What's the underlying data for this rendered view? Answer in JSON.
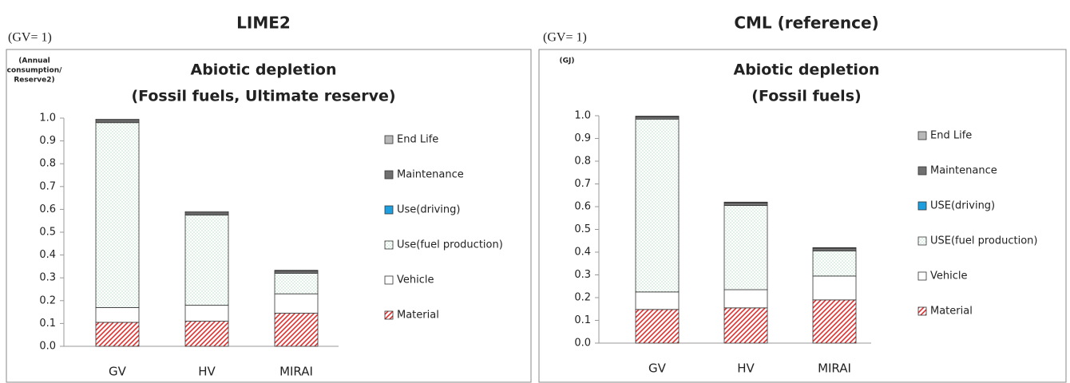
{
  "chart_data": [
    {
      "type": "bar",
      "stacked": true,
      "heading": "LIME2",
      "scale_note": "(GV= 1)",
      "title": [
        "Abiotic depletion",
        "(Fossil fuels, Ultimate reserve)"
      ],
      "y_label": [
        "(Annual",
        "consumption/",
        "Reserve2)"
      ],
      "categories": [
        "GV",
        "HV",
        "MIRAI"
      ],
      "ylim": [
        0,
        1
      ],
      "yticks": [
        {
          "value": 0,
          "label": "0.0"
        },
        0.1,
        0.2,
        0.3,
        0.4,
        0.5,
        0.6,
        0.7,
        0.8,
        0.9,
        {
          "value": 1,
          "label": "1.0"
        }
      ],
      "legend": "right",
      "series": [
        {
          "name": "Material",
          "color": "#e03030",
          "pattern": "hatch",
          "values": [
            0.105,
            0.11,
            0.145
          ]
        },
        {
          "name": "Vehicle",
          "color": "#ffffff",
          "values": [
            0.065,
            0.07,
            0.085
          ]
        },
        {
          "name": "Use(fuel production)",
          "color": "#9ccfb0",
          "pattern": "dots",
          "values": [
            0.81,
            0.395,
            0.09
          ]
        },
        {
          "name": "Use(driving)",
          "color": "#1ea0e0",
          "values": [
            0,
            0,
            0
          ]
        },
        {
          "name": "Maintenance",
          "color": "#707070",
          "values": [
            0.01,
            0.01,
            0.01
          ]
        },
        {
          "name": "End Life",
          "color": "#b8b8b8",
          "values": [
            0.005,
            0.005,
            0.003
          ]
        }
      ]
    },
    {
      "type": "bar",
      "stacked": true,
      "heading": "CML (reference)",
      "scale_note": "(GV= 1)",
      "title": [
        "Abiotic depletion",
        "(Fossil fuels)"
      ],
      "y_label": [
        "(GJ)"
      ],
      "categories": [
        "GV",
        "HV",
        "MIRAI"
      ],
      "ylim": [
        0,
        1
      ],
      "yticks": [
        {
          "value": 0,
          "label": "0.0"
        },
        0.1,
        0.2,
        0.3,
        0.4,
        0.5,
        0.6,
        0.7,
        0.8,
        0.9,
        {
          "value": 1,
          "label": "1.0"
        }
      ],
      "legend": "right",
      "series": [
        {
          "name": "Material",
          "color": "#e03030",
          "pattern": "hatch",
          "values": [
            0.148,
            0.155,
            0.19
          ]
        },
        {
          "name": "Vehicle",
          "color": "#ffffff",
          "values": [
            0.077,
            0.08,
            0.105
          ]
        },
        {
          "name": "USE(fuel production)",
          "color": "#9ccfb0",
          "pattern": "dots",
          "values": [
            0.76,
            0.37,
            0.11
          ]
        },
        {
          "name": "USE(driving)",
          "color": "#1ea0e0",
          "values": [
            0,
            0,
            0
          ]
        },
        {
          "name": "Maintenance",
          "color": "#707070",
          "values": [
            0.01,
            0.012,
            0.012
          ]
        },
        {
          "name": "End Life",
          "color": "#b8b8b8",
          "values": [
            0.003,
            0.003,
            0.003
          ]
        }
      ]
    }
  ]
}
